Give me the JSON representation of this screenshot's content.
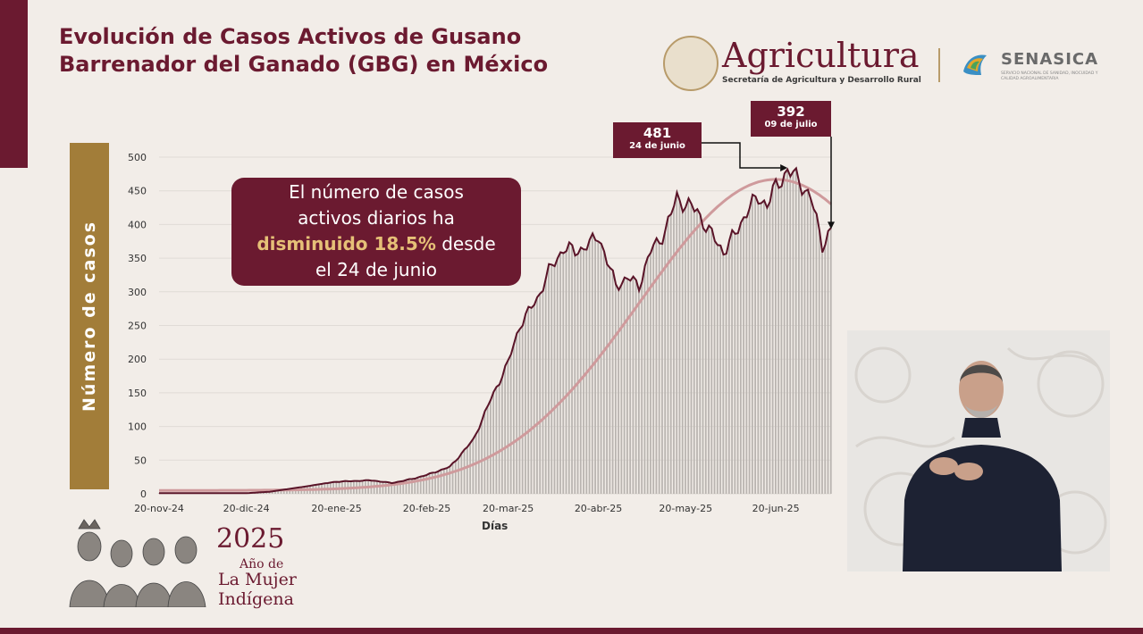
{
  "header": {
    "title": "Evolución de Casos Activos de Gusano\nBarrenador del Ganado (GBG) en México"
  },
  "logos": {
    "agricultura_name": "Agricultura",
    "agricultura_sub": "Secretaría de Agricultura y Desarrollo Rural",
    "senasica_name": "SENASICA",
    "senasica_sub": "SERVICIO NACIONAL DE SANIDAD, INOCUIDAD Y CALIDAD AGROALIMENTARIA"
  },
  "callout": {
    "line1": "El número de casos",
    "line2": "activos diarios ha",
    "highlight": "disminuido 18.5%",
    "line3_rest": " desde",
    "line4": "el 24 de junio"
  },
  "annotations": [
    {
      "value": "481",
      "date": "24 de junio"
    },
    {
      "value": "392",
      "date": "09 de julio"
    }
  ],
  "year_banner": {
    "year": "2025",
    "line1": "Año de",
    "line2": "La Mujer",
    "line3": "Indígena"
  },
  "colors": {
    "maroon": "#6b1a30",
    "gold": "#a27d39",
    "bar": "#b9b4b0",
    "trend": "#cf9a9c",
    "highlight": "#e6c077"
  },
  "chart_data": {
    "type": "bar",
    "xlabel": "Días",
    "ylabel": "Número de casos",
    "ylim": [
      0,
      500
    ],
    "yticks": [
      0,
      50,
      100,
      150,
      200,
      250,
      300,
      350,
      400,
      450,
      500
    ],
    "xtick_labels": [
      "20-nov-24",
      "20-dic-24",
      "20-ene-25",
      "20-feb-25",
      "20-mar-25",
      "20-abr-25",
      "20-may-25",
      "20-jun-25"
    ],
    "start_date": "2024-11-20",
    "end_date": "2025-07-09",
    "keypoints": [
      [
        "2024-11-20",
        1
      ],
      [
        "2024-12-20",
        1
      ],
      [
        "2024-12-28",
        3
      ],
      [
        "2025-01-08",
        10
      ],
      [
        "2025-01-20",
        18
      ],
      [
        "2025-02-01",
        20
      ],
      [
        "2025-02-08",
        16
      ],
      [
        "2025-02-15",
        22
      ],
      [
        "2025-02-20",
        28
      ],
      [
        "2025-02-28",
        40
      ],
      [
        "2025-03-08",
        80
      ],
      [
        "2025-03-14",
        140
      ],
      [
        "2025-03-20",
        195
      ],
      [
        "2025-03-24",
        250
      ],
      [
        "2025-03-30",
        290
      ],
      [
        "2025-04-03",
        330
      ],
      [
        "2025-04-08",
        365
      ],
      [
        "2025-04-12",
        360
      ],
      [
        "2025-04-17",
        370
      ],
      [
        "2025-04-20",
        385
      ],
      [
        "2025-04-23",
        345
      ],
      [
        "2025-04-26",
        310
      ],
      [
        "2025-04-30",
        320
      ],
      [
        "2025-05-04",
        310
      ],
      [
        "2025-05-08",
        360
      ],
      [
        "2025-05-13",
        390
      ],
      [
        "2025-05-17",
        440
      ],
      [
        "2025-05-20",
        430
      ],
      [
        "2025-05-24",
        420
      ],
      [
        "2025-05-28",
        390
      ],
      [
        "2025-06-02",
        360
      ],
      [
        "2025-06-06",
        385
      ],
      [
        "2025-06-10",
        420
      ],
      [
        "2025-06-14",
        440
      ],
      [
        "2025-06-17",
        430
      ],
      [
        "2025-06-20",
        455
      ],
      [
        "2025-06-24",
        481
      ],
      [
        "2025-06-28",
        465
      ],
      [
        "2025-07-02",
        440
      ],
      [
        "2025-07-06",
        370
      ],
      [
        "2025-07-09",
        392
      ]
    ],
    "trend_label": ""
  }
}
